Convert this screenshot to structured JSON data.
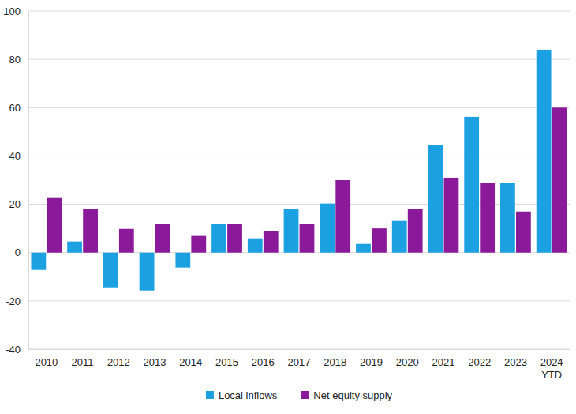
{
  "chart_data": {
    "type": "bar",
    "categories": [
      "2010",
      "2011",
      "2012",
      "2013",
      "2014",
      "2015",
      "2016",
      "2017",
      "2018",
      "2019",
      "2020",
      "2021",
      "2022",
      "2023",
      "2024 YTD"
    ],
    "series": [
      {
        "name": "Local inflows",
        "color": "#1ba1e2",
        "values": [
          -7.2,
          4.6,
          -14.4,
          -15.7,
          -6.2,
          11.8,
          5.9,
          18,
          20.3,
          3.6,
          13.1,
          44.4,
          56.2,
          28.8,
          84
        ]
      },
      {
        "name": "Net equity supply",
        "color": "#8b1a9a",
        "values": [
          22.9,
          18,
          9.8,
          12,
          6.9,
          12,
          9,
          12,
          30,
          10,
          18,
          31,
          29,
          17,
          60
        ]
      }
    ],
    "ylim": [
      -40,
      100
    ],
    "yticks": [
      -40,
      -20,
      0,
      20,
      40,
      60,
      80,
      100
    ],
    "grid": true,
    "legend": "bottom"
  }
}
